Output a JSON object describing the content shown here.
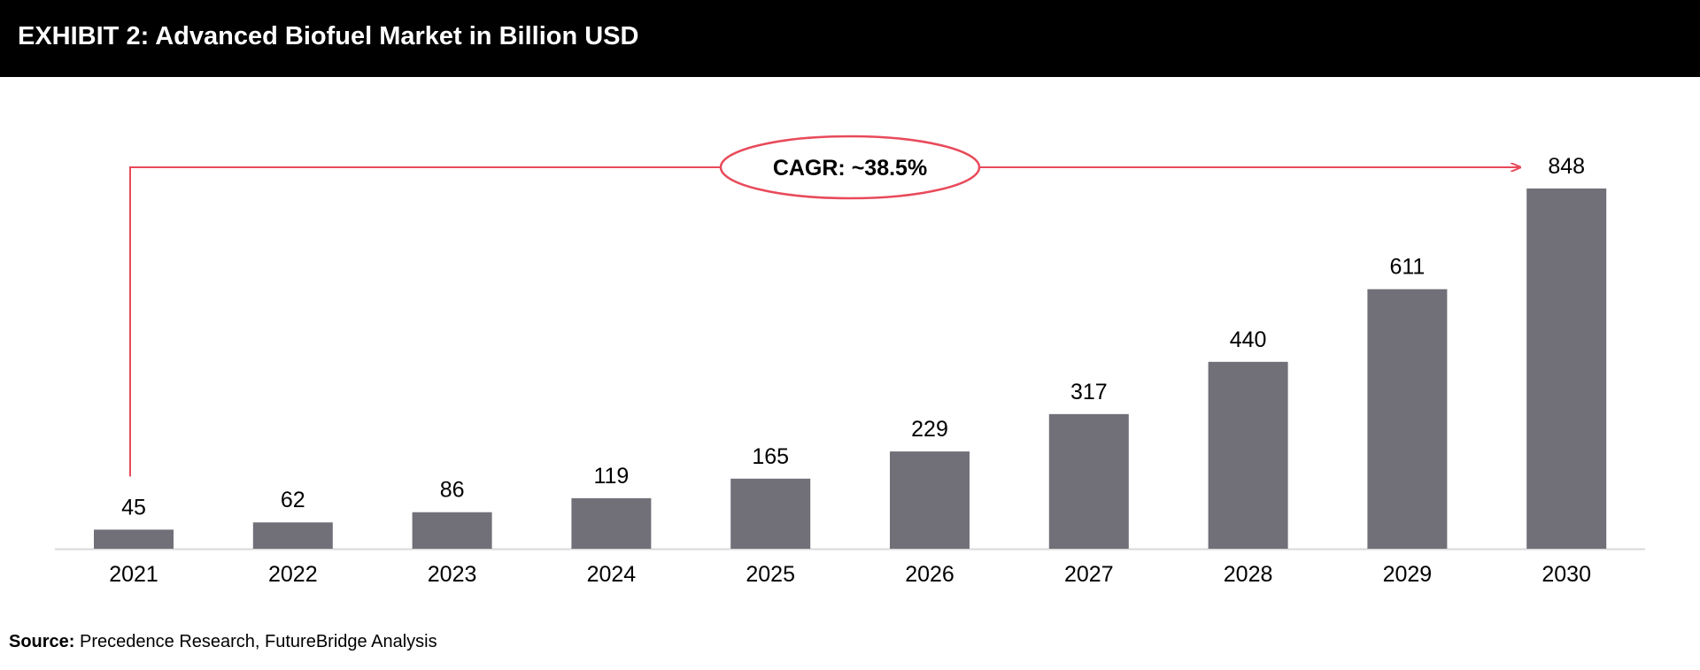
{
  "header": {
    "title": "EXHIBIT 2: Advanced Biofuel Market in Billion USD"
  },
  "chart_data": {
    "type": "bar",
    "title": "EXHIBIT 2: Advanced Biofuel Market in Billion USD",
    "categories": [
      "2021",
      "2022",
      "2023",
      "2024",
      "2025",
      "2026",
      "2027",
      "2028",
      "2029",
      "2030"
    ],
    "values": [
      45,
      62,
      86,
      119,
      165,
      229,
      317,
      440,
      611,
      848
    ],
    "data_labels": [
      "45",
      "62",
      "86",
      "119",
      "165",
      "229",
      "317",
      "440",
      "611",
      "848"
    ],
    "xlabel": "",
    "ylabel": "",
    "ylim": [
      0,
      848
    ],
    "grid": false,
    "legend": "none",
    "annotation": {
      "text": "CAGR: ~38.5%",
      "from": "2021",
      "to": "2030"
    },
    "colors": {
      "bar": "#717079",
      "annotation": "#e84a5a",
      "axis": "#d9d9d9"
    }
  },
  "source": {
    "label": "Source:",
    "text": "Precedence Research, FutureBridge Analysis"
  }
}
